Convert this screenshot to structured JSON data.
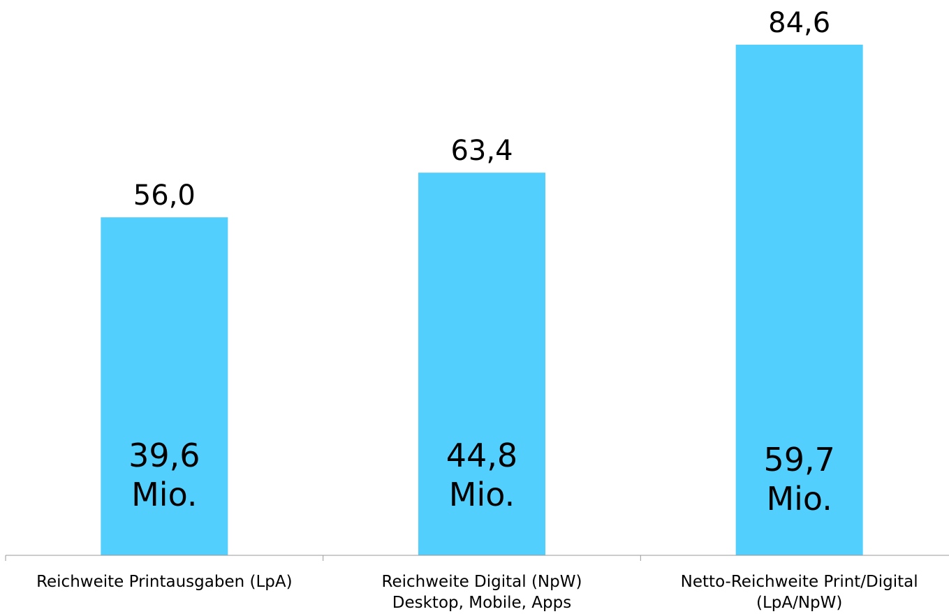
{
  "chart_data": {
    "type": "bar",
    "title": "",
    "xlabel": "",
    "ylabel": "",
    "ylim": [
      0,
      90
    ],
    "grid": false,
    "legend": "none",
    "bar_color": "#53CFFE",
    "categories": [
      [
        "Reichweite Printausgaben (LpA)"
      ],
      [
        "Reichweite Digital (NpW)",
        "Desktop, Mobile, Apps"
      ],
      [
        "Netto-Reichweite Print/Digital",
        "(LpA/NpW)"
      ]
    ],
    "values": [
      56.0,
      63.4,
      84.6
    ],
    "value_labels": [
      "56,0",
      "63,4",
      "84,6"
    ],
    "inner_labels": [
      [
        "39,6",
        "Mio."
      ],
      [
        "44,8",
        "Mio."
      ],
      [
        "59,7",
        "Mio."
      ]
    ]
  }
}
